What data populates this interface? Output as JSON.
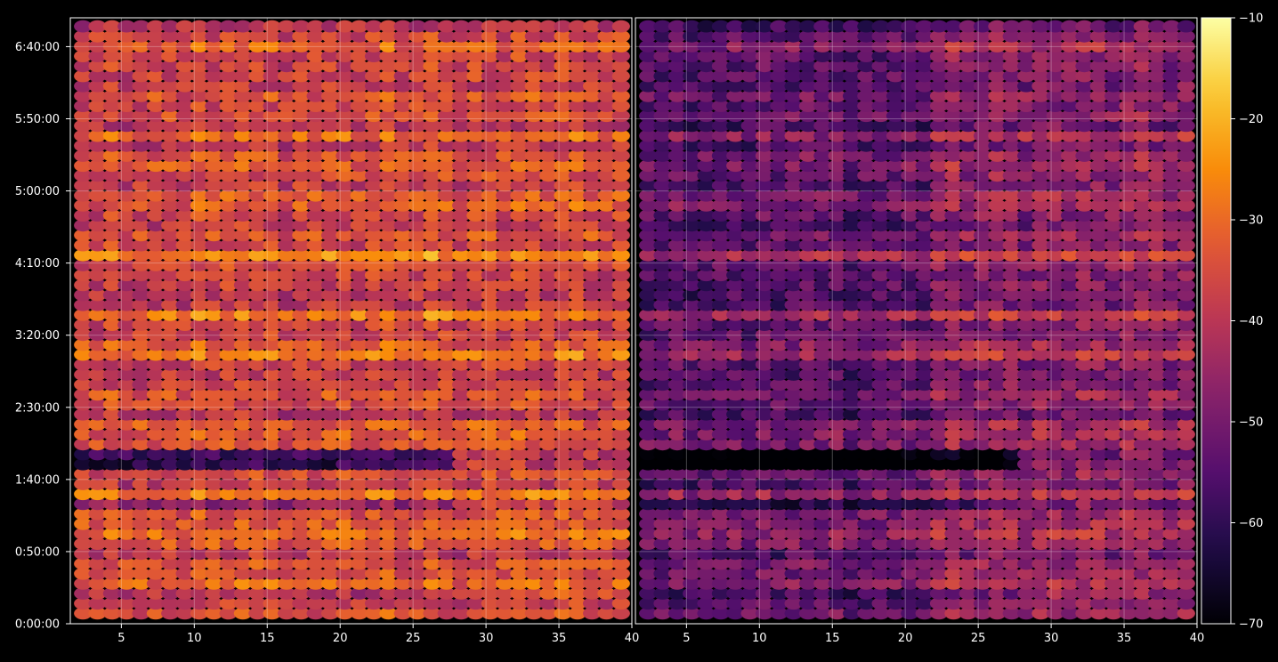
{
  "chart_data": {
    "type": "heatmap",
    "title": "",
    "xlabel": "",
    "ylabel": "",
    "grid": true,
    "background": "#000000",
    "colormap": "inferno",
    "panels": [
      {
        "name": "",
        "xlim": [
          1.5,
          40
        ],
        "x_ticks": [
          5,
          10,
          15,
          20,
          25,
          30,
          35,
          40
        ],
        "x_tick_labels": [
          "5",
          "10",
          "15",
          "20",
          "25",
          "30",
          "35",
          "40"
        ],
        "value_offset": 0
      },
      {
        "name": "",
        "xlim": [
          1.5,
          40
        ],
        "x_ticks": [
          5,
          10,
          15,
          20,
          25,
          30,
          35,
          40
        ],
        "x_tick_labels": [
          "5",
          "10",
          "15",
          "20",
          "25",
          "30",
          "35",
          "40"
        ],
        "value_offset": -11
      }
    ],
    "y_axis": {
      "range_seconds": [
        0,
        25200
      ],
      "ticks_seconds": [
        0,
        3000,
        6000,
        9000,
        12000,
        15000,
        18000,
        21000,
        24000
      ],
      "tick_labels": [
        "0:00:00",
        "0:50:00",
        "1:40:00",
        "2:30:00",
        "3:20:00",
        "4:10:00",
        "5:00:00",
        "5:50:00",
        "6:40:00"
      ]
    },
    "grid_size": {
      "columns": 38,
      "rows": 60
    },
    "colorbar": {
      "min": -70,
      "max": -10,
      "ticks": [
        -10,
        -20,
        -30,
        -40,
        -50,
        -60,
        -70
      ],
      "tick_labels": [
        "−10",
        "−20",
        "−30",
        "−40",
        "−50",
        "−60",
        "−70"
      ],
      "placement": "right"
    },
    "typical_value_range_dB": [
      -60,
      -15
    ]
  }
}
